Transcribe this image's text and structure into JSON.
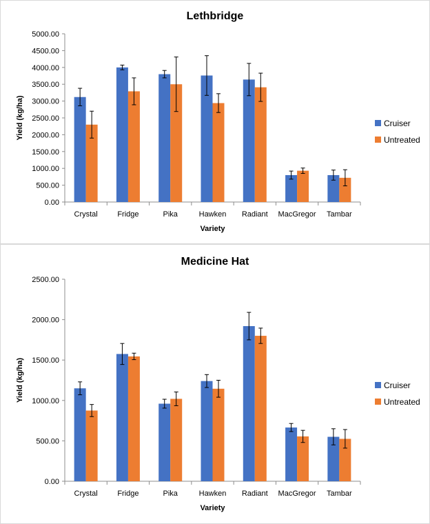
{
  "colors": {
    "cruiser": "#4472C4",
    "untreated": "#ED7D31",
    "axis": "#8c8c8c",
    "errorbar": "#000000"
  },
  "chart_data": [
    {
      "type": "bar",
      "title": "Lethbridge",
      "xlabel": "Variety",
      "ylabel": "Yield (kg/ha)",
      "ylim": [
        0,
        5000
      ],
      "ytick_step": 500,
      "ytick_labels": [
        "0.00",
        "500.00",
        "1000.00",
        "1500.00",
        "2000.00",
        "2500.00",
        "3000.00",
        "3500.00",
        "4000.00",
        "4500.00",
        "5000.00"
      ],
      "grid": false,
      "legend": "right",
      "categories": [
        "Crystal",
        "Fridge",
        "Pika",
        "Hawken",
        "Radiant",
        "MacGregor",
        "Tambar"
      ],
      "series": [
        {
          "name": "Cruiser",
          "color": "#4472C4",
          "values": [
            3120,
            4000,
            3800,
            3760,
            3640,
            800,
            800
          ],
          "errors": [
            260,
            70,
            110,
            590,
            480,
            120,
            150
          ]
        },
        {
          "name": "Untreated",
          "color": "#ED7D31",
          "values": [
            2300,
            3290,
            3500,
            2940,
            3410,
            930,
            720
          ],
          "errors": [
            400,
            400,
            810,
            280,
            420,
            80,
            240
          ]
        }
      ]
    },
    {
      "type": "bar",
      "title": "Medicine Hat",
      "xlabel": "Variety",
      "ylabel": "Yield (kg/ha)",
      "ylim": [
        0,
        2500
      ],
      "ytick_step": 500,
      "ytick_labels": [
        "0.00",
        "500.00",
        "1000.00",
        "1500.00",
        "2000.00",
        "2500.00"
      ],
      "grid": false,
      "legend": "right",
      "categories": [
        "Crystal",
        "Fridge",
        "Pika",
        "Hawken",
        "Radiant",
        "MacGregor",
        "Tambar"
      ],
      "series": [
        {
          "name": "Cruiser",
          "color": "#4472C4",
          "values": [
            1150,
            1575,
            960,
            1240,
            1920,
            665,
            550
          ],
          "errors": [
            80,
            130,
            55,
            80,
            170,
            50,
            100
          ]
        },
        {
          "name": "Untreated",
          "color": "#ED7D31",
          "values": [
            875,
            1545,
            1020,
            1145,
            1800,
            555,
            525
          ],
          "errors": [
            75,
            40,
            85,
            105,
            95,
            75,
            115
          ]
        }
      ]
    }
  ]
}
